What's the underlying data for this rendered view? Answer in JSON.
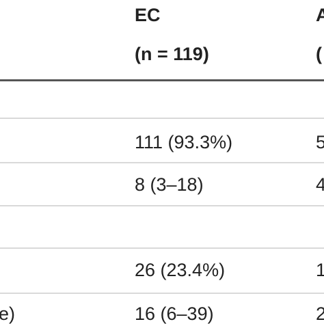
{
  "table": {
    "header": {
      "ec": "EC",
      "ec_n": "(n = 119)",
      "next": "A",
      "next_n": "("
    },
    "rows": [
      {
        "ec": "111 (93.3%)",
        "next": "5"
      },
      {
        "ec": "8 (3–18)",
        "next": "4"
      },
      {
        "ec": "26 (23.4%)",
        "next": "1"
      },
      {
        "label": "e)",
        "ec": "16 (6–39)",
        "next": "2"
      }
    ]
  }
}
